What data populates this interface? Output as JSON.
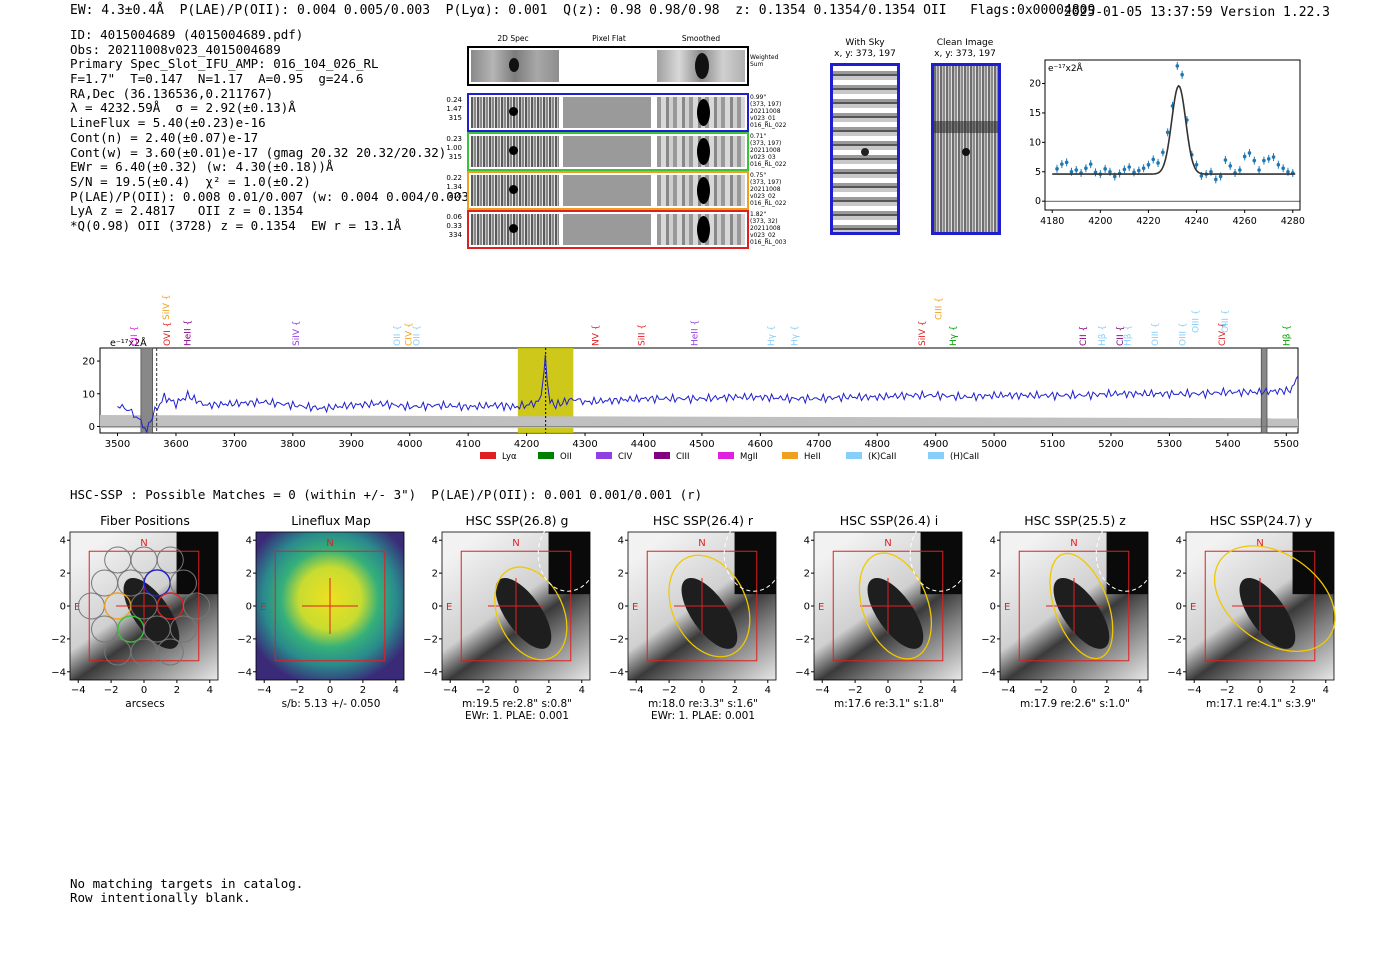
{
  "header": {
    "left": "EW: 4.3±0.4Å  P(LAE)/P(OII): 0.004 0.005/0.003  P(Lyα): 0.001  Q(z): 0.98 0.98/0.98  z: 0.1354 0.1354/0.1354 OII   Flags:0x00004809",
    "right": "2025-01-05 13:37:59  Version 1.22.3"
  },
  "info_lines": [
    "ID: 4015004689 (4015004689.pdf)",
    "Obs: 20211008v023_4015004689",
    "Primary Spec_Slot_IFU_AMP: 016_104_026_RL",
    "F=1.7\"  T=0.147  N=1.17  A=0.95  g=24.6",
    "RA,Dec (36.136536,0.211767)",
    "λ = 4232.59Å  σ = 2.92(±0.13)Å",
    "LineFlux = 5.40(±0.23)e-16",
    "Cont(n) = 2.40(±0.07)e-17",
    "Cont(w) = 3.60(±0.01)e-17 (gmag 20.32 20.32/20.32)",
    "EWr = 6.40(±0.32) (w: 4.30(±0.18))Å",
    "S/N = 19.5(±0.4)  χ² = 1.0(±0.2)",
    "P(LAE)/P(OII): 0.008 0.01/0.007 (w: 0.004 0.004/0.003)",
    "LyA z = 2.4817   OII z = 0.1354",
    "*Q(0.98) OII (3728) z = 0.1354  EW r = 13.1Å"
  ],
  "cutouts": {
    "col_labels": [
      "2D Spec",
      "Pixel Flat",
      "Smoothed"
    ],
    "weighted_sum_label": "Weighted Sum",
    "rows": [
      {
        "color": "#1f1fd0",
        "left_stats": [
          "0.24",
          "1.47",
          "315"
        ],
        "right_text": [
          "0.99\"",
          "(373, 197)",
          "20211008",
          "v023_01",
          "016_RL_022"
        ]
      },
      {
        "color": "#3ac23a",
        "left_stats": [
          "0.23",
          "1.00",
          "315"
        ],
        "right_text": [
          "0.71\"",
          "(373, 197)",
          "20211008",
          "v023_03",
          "016_RL_022"
        ]
      },
      {
        "color": "#f0a020",
        "left_stats": [
          "0.22",
          "1.34",
          "315"
        ],
        "right_text": [
          "0.75\"",
          "(373, 197)",
          "20211008",
          "v023_02",
          "016_RL_022"
        ]
      },
      {
        "color": "#e02020",
        "left_stats": [
          "0.06",
          "0.33",
          "334"
        ],
        "right_text": [
          "1.82\"",
          "(373, 32)",
          "20211008",
          "v023_02",
          "016_RL_003"
        ]
      }
    ]
  },
  "sky_panels": {
    "with_sky_title": "With Sky",
    "with_sky_coords": "x, y: 373, 197",
    "clean_title": "Clean Image",
    "clean_coords": "x, y: 373, 197"
  },
  "line_fit_chart": {
    "unit_label": "e⁻¹⁷x2Å",
    "x_ticks": [
      "4180",
      "4200",
      "4220",
      "4240",
      "4260",
      "4280"
    ],
    "y_ticks": [
      "0",
      "5",
      "10",
      "15",
      "20"
    ]
  },
  "spectrum_chart": {
    "unit_label": "e⁻¹⁷x2Å",
    "x_ticks": [
      "3500",
      "3600",
      "3700",
      "3800",
      "3900",
      "4000",
      "4100",
      "4200",
      "4300",
      "4400",
      "4500",
      "4600",
      "4700",
      "4800",
      "4900",
      "5000",
      "5100",
      "5200",
      "5300",
      "5400",
      "5500"
    ],
    "y_ticks": [
      "0",
      "10",
      "20"
    ],
    "line_labels": [
      {
        "text": "CII",
        "color": "#e020e0",
        "wave": 3528,
        "row": 0
      },
      {
        "text": "SiIV",
        "color": "#f0a020",
        "wave": 3583,
        "row": 2
      },
      {
        "text": "OVI",
        "color": "#e02020",
        "wave": 3585,
        "row": 0
      },
      {
        "text": "HeII",
        "color": "#800080",
        "wave": 3620,
        "row": 0
      },
      {
        "text": "SiIV",
        "color": "#9040e0",
        "wave": 3805,
        "row": 0
      },
      {
        "text": "OII",
        "color": "#87cefa",
        "wave": 3978,
        "row": 0
      },
      {
        "text": "CIV",
        "color": "#f0a020",
        "wave": 3998,
        "row": 0
      },
      {
        "text": "OII",
        "color": "#87cefa",
        "wave": 4012,
        "row": 0
      },
      {
        "text": "NV",
        "color": "#e02020",
        "wave": 4318,
        "row": 0
      },
      {
        "text": "SiII",
        "color": "#e02020",
        "wave": 4397,
        "row": 0
      },
      {
        "text": "HeII",
        "color": "#9040e0",
        "wave": 4487,
        "row": 0
      },
      {
        "text": "Hγ",
        "color": "#87cefa",
        "wave": 4618,
        "row": 0
      },
      {
        "text": "Hγ",
        "color": "#87cefa",
        "wave": 4658,
        "row": 0
      },
      {
        "text": "SiIV",
        "color": "#e02020",
        "wave": 4877,
        "row": 0
      },
      {
        "text": "CIII",
        "color": "#f0a020",
        "wave": 4905,
        "row": 2
      },
      {
        "text": "Hγ",
        "color": "#00a000",
        "wave": 4930,
        "row": 0
      },
      {
        "text": "CII",
        "color": "#800080",
        "wave": 5152,
        "row": 0
      },
      {
        "text": "Hβ",
        "color": "#87cefa",
        "wave": 5185,
        "row": 0
      },
      {
        "text": "CII",
        "color": "#800080",
        "wave": 5215,
        "row": 0
      },
      {
        "text": "Hβ",
        "color": "#87cefa",
        "wave": 5228,
        "row": 0
      },
      {
        "text": "OIII",
        "color": "#87cefa",
        "wave": 5275,
        "row": 0
      },
      {
        "text": "OIII",
        "color": "#87cefa",
        "wave": 5322,
        "row": 0
      },
      {
        "text": "OIII",
        "color": "#87cefa",
        "wave": 5345,
        "row": 1
      },
      {
        "text": "CIV",
        "color": "#e02020",
        "wave": 5390,
        "row": 0
      },
      {
        "text": "OIII",
        "color": "#87cefa",
        "wave": 5395,
        "row": 1
      },
      {
        "text": "Hβ",
        "color": "#00a000",
        "wave": 5500,
        "row": 0
      }
    ],
    "legend": [
      {
        "label": "Lyα",
        "color": "#e02020"
      },
      {
        "label": "OII",
        "color": "#008000"
      },
      {
        "label": "CIV",
        "color": "#9040e0"
      },
      {
        "label": "CIII",
        "color": "#800080"
      },
      {
        "label": "MgII",
        "color": "#e020e0"
      },
      {
        "label": "HeII",
        "color": "#f0a020"
      },
      {
        "label": "(K)CaII",
        "color": "#87cefa"
      },
      {
        "label": "(H)CaII",
        "color": "#87cefa"
      }
    ]
  },
  "hsc": {
    "summary": "HSC-SSP : Possible Matches = 0 (within +/- 3\")  P(LAE)/P(OII): 0.001 0.001/0.001 (r)",
    "axis_ticks": [
      "−4",
      "−2",
      "0",
      "2",
      "4"
    ],
    "compass_n": "N",
    "compass_e": "E",
    "panels": [
      {
        "title": "Fiber Positions",
        "caption": [
          "arcsecs"
        ],
        "type": "fibers"
      },
      {
        "title": "Lineflux Map",
        "caption": [
          "s/b: 5.13 +/- 0.050"
        ],
        "type": "flux"
      },
      {
        "title": "HSC SSP(26.8) g",
        "caption": [
          "m:19.5  re:2.8\"  s:0.8\"",
          "EWr: 1. PLAE: 0.001"
        ],
        "type": "img"
      },
      {
        "title": "HSC SSP(26.4) r",
        "caption": [
          "m:18.0  re:3.3\"  s:1.6\"",
          "EWr: 1. PLAE: 0.001"
        ],
        "type": "img"
      },
      {
        "title": "HSC SSP(26.4) i",
        "caption": [
          "m:17.6  re:3.1\"  s:1.8\""
        ],
        "type": "img"
      },
      {
        "title": "HSC SSP(25.5) z",
        "caption": [
          "m:17.9  re:2.6\"  s:1.0\""
        ],
        "type": "img"
      },
      {
        "title": "HSC SSP(24.7) y",
        "caption": [
          "m:17.1  re:4.1\"  s:3.9\""
        ],
        "type": "img"
      }
    ]
  },
  "footer": [
    "No matching targets in catalog.",
    "Row intentionally blank."
  ],
  "chart_data": [
    {
      "type": "scatter",
      "title": "",
      "xlabel": "",
      "ylabel": "e⁻¹⁷x2Å",
      "xlim": [
        4177,
        4283
      ],
      "ylim": [
        -1.5,
        24
      ],
      "x": [
        4182,
        4184,
        4186,
        4188,
        4190,
        4192,
        4194,
        4196,
        4198,
        4200,
        4202,
        4204,
        4206,
        4208,
        4210,
        4212,
        4214,
        4216,
        4218,
        4220,
        4222,
        4224,
        4226,
        4228,
        4230,
        4232,
        4234,
        4236,
        4238,
        4240,
        4242,
        4244,
        4246,
        4248,
        4250,
        4252,
        4254,
        4256,
        4258,
        4260,
        4262,
        4264,
        4266,
        4268,
        4270,
        4272,
        4274,
        4276,
        4278,
        4280
      ],
      "y": [
        5.5,
        6.3,
        6.6,
        5.0,
        5.3,
        4.8,
        5.6,
        6.3,
        4.9,
        4.6,
        5.5,
        5.0,
        4.2,
        4.7,
        5.4,
        5.8,
        4.9,
        5.2,
        5.6,
        6.2,
        7.1,
        6.5,
        8.3,
        11.7,
        16.2,
        23.0,
        21.5,
        13.8,
        7.9,
        6.2,
        4.3,
        4.6,
        5.0,
        3.7,
        4.2,
        7.0,
        6.0,
        4.8,
        5.3,
        7.6,
        8.2,
        6.9,
        5.3,
        6.9,
        7.2,
        7.5,
        6.2,
        5.6,
        5.0,
        4.8
      ],
      "fit": {
        "model": "gaussian",
        "center": 4232.59,
        "sigma": 2.92,
        "continuum": 4.6,
        "amplitude": 15.0
      }
    },
    {
      "type": "line",
      "title": "",
      "xlabel": "",
      "ylabel": "e⁻¹⁷x2Å",
      "xlim": [
        3470,
        5520
      ],
      "ylim": [
        -2,
        24
      ],
      "series": [
        {
          "name": "",
          "x": [
            3500,
            3520,
            3540,
            3550,
            3560,
            3580,
            3600,
            3620,
            3650,
            3700,
            3750,
            3800,
            3850,
            3900,
            3950,
            4000,
            4050,
            4100,
            4150,
            4180,
            4200,
            4220,
            4225,
            4230,
            4232,
            4235,
            4240,
            4250,
            4280,
            4300,
            4350,
            4400,
            4450,
            4500,
            4550,
            4600,
            4650,
            4700,
            4750,
            4800,
            4850,
            4900,
            4950,
            5000,
            5050,
            5100,
            5150,
            5200,
            5250,
            5300,
            5350,
            5400,
            5450,
            5500,
            5510,
            5520
          ],
          "values": [
            6.5,
            5.0,
            1.5,
            -1.5,
            3.5,
            9.0,
            7.0,
            9.5,
            6.5,
            7.0,
            7.5,
            6.5,
            5.5,
            6.5,
            7.0,
            6.0,
            6.5,
            6.0,
            6.5,
            6.0,
            6.5,
            7.5,
            9.5,
            17.0,
            22.0,
            14.0,
            7.5,
            6.5,
            8.5,
            7.5,
            8.0,
            8.5,
            8.5,
            8.5,
            9.0,
            9.0,
            8.5,
            8.5,
            9.0,
            9.0,
            9.5,
            9.5,
            9.0,
            9.5,
            9.5,
            9.5,
            9.5,
            10.0,
            10.0,
            10.0,
            10.0,
            10.5,
            10.5,
            11.0,
            11.5,
            15.5
          ]
        }
      ],
      "highlight_band": [
        4185,
        4280
      ],
      "line_center": 4232.59
    }
  ]
}
